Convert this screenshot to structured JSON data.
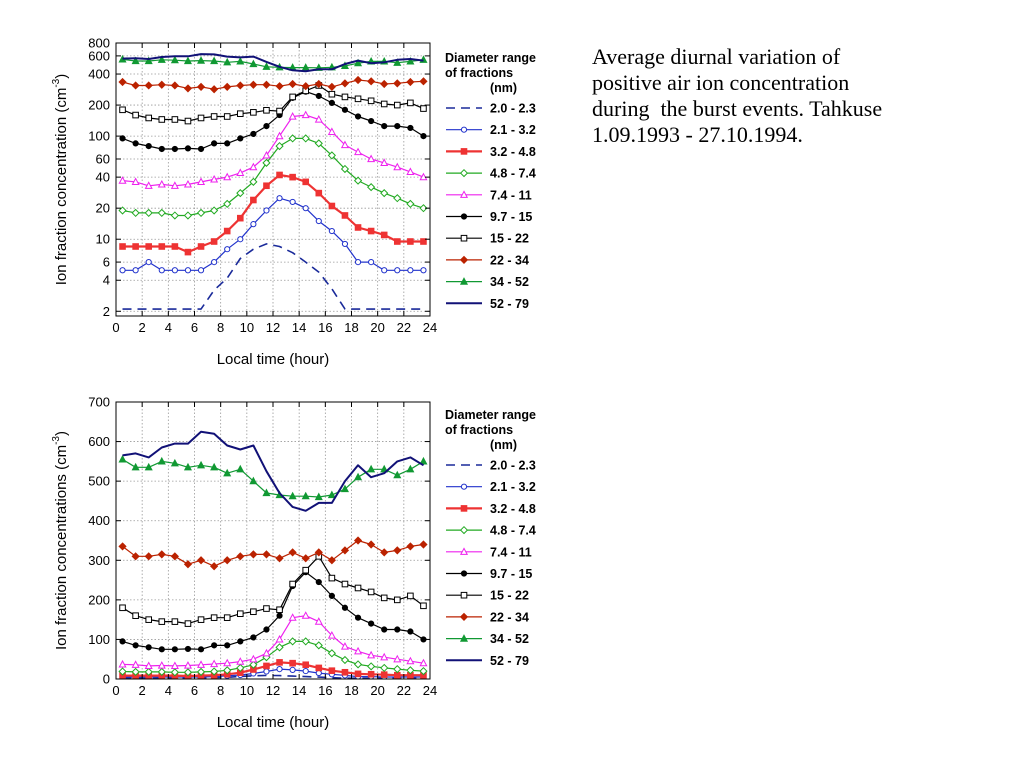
{
  "caption": {
    "lines": [
      "Average diurnal variation of",
      "positive air ion concentration",
      "during  the burst events. Tahkuse",
      "1.09.1993 - 27.10.1994."
    ]
  },
  "chart_data": [
    {
      "type": "line",
      "yscale": "log",
      "xlabel": "Local time  (hour)",
      "ylabel": "Ion fraction concentration  (cm",
      "ylabel_sup": "-3",
      "ylabel_close": ")",
      "xlim": [
        0,
        24
      ],
      "ylim": [
        1.8,
        800
      ],
      "xticks": [
        "0",
        "2",
        "4",
        "6",
        "8",
        "10",
        "12",
        "14",
        "16",
        "18",
        "20",
        "22",
        "24"
      ],
      "yticks": [
        {
          "v": 2,
          "label": "2"
        },
        {
          "v": 4,
          "label": "4"
        },
        {
          "v": 6,
          "label": "6"
        },
        {
          "v": 10,
          "label": "10"
        },
        {
          "v": 20,
          "label": "20"
        },
        {
          "v": 40,
          "label": "40"
        },
        {
          "v": 60,
          "label": "60"
        },
        {
          "v": 100,
          "label": "100"
        },
        {
          "v": 200,
          "label": "200"
        },
        {
          "v": 400,
          "label": "400"
        },
        {
          "v": 600,
          "label": "600"
        },
        {
          "v": 800,
          "label": "800"
        }
      ],
      "grid": true,
      "legend_title": [
        "Diameter range",
        "of fractions",
        "(nm)"
      ],
      "legend_position": "right",
      "series": [
        {
          "name": "2.0 - 2.3",
          "color": "#1a2a9a",
          "dash": true,
          "marker": "none",
          "width": 1.6,
          "x": [
            0.5,
            1.5,
            2.5,
            3.5,
            4.5,
            5.5,
            6.5,
            7.5,
            8.5,
            9.5,
            10.5,
            11.5,
            12.5,
            13.5,
            14.5,
            15.5,
            16.5,
            17.5,
            18.5,
            19.5,
            20.5,
            21.5,
            22.5,
            23.5
          ],
          "y": [
            2.1,
            2.1,
            2.1,
            2.1,
            2.1,
            2.1,
            2.1,
            3.2,
            4.2,
            6.5,
            8,
            9,
            8.5,
            7.4,
            6,
            4.8,
            3.3,
            2.1,
            2.1,
            2.1,
            2.1,
            2.1,
            2.1,
            2.1
          ]
        },
        {
          "name": "2.1 - 3.2",
          "color": "#2233cc",
          "dash": false,
          "marker": "circle-open",
          "width": 1.2,
          "x": [
            0.5,
            1.5,
            2.5,
            3.5,
            4.5,
            5.5,
            6.5,
            7.5,
            8.5,
            9.5,
            10.5,
            11.5,
            12.5,
            13.5,
            14.5,
            15.5,
            16.5,
            17.5,
            18.5,
            19.5,
            20.5,
            21.5,
            22.5,
            23.5
          ],
          "y": [
            5,
            5,
            6,
            5,
            5,
            5,
            5,
            6,
            8,
            10,
            14,
            19,
            25,
            23,
            20,
            15,
            12,
            9,
            6,
            6,
            5,
            5,
            5,
            5
          ]
        },
        {
          "name": "3.2 - 4.8",
          "color": "#ee3333",
          "dash": false,
          "marker": "square-filled",
          "width": 2.2,
          "x": [
            0.5,
            1.5,
            2.5,
            3.5,
            4.5,
            5.5,
            6.5,
            7.5,
            8.5,
            9.5,
            10.5,
            11.5,
            12.5,
            13.5,
            14.5,
            15.5,
            16.5,
            17.5,
            18.5,
            19.5,
            20.5,
            21.5,
            22.5,
            23.5
          ],
          "y": [
            8.5,
            8.5,
            8.5,
            8.5,
            8.5,
            7.5,
            8.5,
            9.5,
            12,
            16,
            24,
            33,
            42,
            40,
            36,
            28,
            21,
            17,
            13,
            12,
            11,
            9.5,
            9.5,
            9.5
          ]
        },
        {
          "name": "4.8 - 7.4",
          "color": "#22aa22",
          "dash": false,
          "marker": "diamond-open",
          "width": 1.2,
          "x": [
            0.5,
            1.5,
            2.5,
            3.5,
            4.5,
            5.5,
            6.5,
            7.5,
            8.5,
            9.5,
            10.5,
            11.5,
            12.5,
            13.5,
            14.5,
            15.5,
            16.5,
            17.5,
            18.5,
            19.5,
            20.5,
            21.5,
            22.5,
            23.5
          ],
          "y": [
            19,
            18,
            18,
            18,
            17,
            17,
            18,
            19,
            22,
            28,
            36,
            55,
            80,
            95,
            95,
            85,
            65,
            48,
            37,
            32,
            28,
            25,
            22,
            20
          ]
        },
        {
          "name": "7.4 - 11",
          "color": "#ee22ee",
          "dash": false,
          "marker": "triangle-open",
          "width": 1.2,
          "x": [
            0.5,
            1.5,
            2.5,
            3.5,
            4.5,
            5.5,
            6.5,
            7.5,
            8.5,
            9.5,
            10.5,
            11.5,
            12.5,
            13.5,
            14.5,
            15.5,
            16.5,
            17.5,
            18.5,
            19.5,
            20.5,
            21.5,
            22.5,
            23.5
          ],
          "y": [
            37,
            36,
            33,
            34,
            33,
            34,
            36,
            38,
            40,
            44,
            50,
            65,
            100,
            155,
            160,
            145,
            110,
            82,
            70,
            60,
            55,
            50,
            45,
            40
          ]
        },
        {
          "name": "9.7 - 15",
          "color": "#000000",
          "dash": false,
          "marker": "circle-filled",
          "width": 1.2,
          "x": [
            0.5,
            1.5,
            2.5,
            3.5,
            4.5,
            5.5,
            6.5,
            7.5,
            8.5,
            9.5,
            10.5,
            11.5,
            12.5,
            13.5,
            14.5,
            15.5,
            16.5,
            17.5,
            18.5,
            19.5,
            20.5,
            21.5,
            22.5,
            23.5
          ],
          "y": [
            95,
            85,
            80,
            75,
            75,
            76,
            75,
            85,
            85,
            95,
            105,
            125,
            160,
            235,
            270,
            245,
            210,
            180,
            155,
            140,
            125,
            125,
            120,
            100
          ]
        },
        {
          "name": "15 - 22",
          "color": "#000000",
          "dash": false,
          "marker": "square-open",
          "width": 1.2,
          "x": [
            0.5,
            1.5,
            2.5,
            3.5,
            4.5,
            5.5,
            6.5,
            7.5,
            8.5,
            9.5,
            10.5,
            11.5,
            12.5,
            13.5,
            14.5,
            15.5,
            16.5,
            17.5,
            18.5,
            19.5,
            20.5,
            21.5,
            22.5,
            23.5
          ],
          "y": [
            180,
            160,
            150,
            145,
            145,
            140,
            150,
            155,
            155,
            165,
            170,
            178,
            175,
            240,
            275,
            310,
            255,
            240,
            230,
            220,
            205,
            200,
            210,
            185
          ]
        },
        {
          "name": "22 - 34",
          "color": "#bb2200",
          "dash": false,
          "marker": "diamond-filled",
          "width": 1.2,
          "x": [
            0.5,
            1.5,
            2.5,
            3.5,
            4.5,
            5.5,
            6.5,
            7.5,
            8.5,
            9.5,
            10.5,
            11.5,
            12.5,
            13.5,
            14.5,
            15.5,
            16.5,
            17.5,
            18.5,
            19.5,
            20.5,
            21.5,
            22.5,
            23.5
          ],
          "y": [
            335,
            310,
            310,
            315,
            310,
            290,
            300,
            285,
            300,
            310,
            315,
            315,
            305,
            320,
            305,
            320,
            300,
            325,
            350,
            340,
            320,
            325,
            335,
            340
          ]
        },
        {
          "name": "34 - 52",
          "color": "#119933",
          "dash": false,
          "marker": "triangle-filled",
          "width": 1.2,
          "x": [
            0.5,
            1.5,
            2.5,
            3.5,
            4.5,
            5.5,
            6.5,
            7.5,
            8.5,
            9.5,
            10.5,
            11.5,
            12.5,
            13.5,
            14.5,
            15.5,
            16.5,
            17.5,
            18.5,
            19.5,
            20.5,
            21.5,
            22.5,
            23.5
          ],
          "y": [
            555,
            535,
            535,
            550,
            545,
            535,
            540,
            535,
            520,
            530,
            500,
            470,
            465,
            462,
            462,
            460,
            465,
            480,
            510,
            530,
            530,
            515,
            530,
            550
          ]
        },
        {
          "name": "52 - 79",
          "color": "#111177",
          "dash": false,
          "marker": "none",
          "width": 2,
          "x": [
            0.5,
            1.5,
            2.5,
            3.5,
            4.5,
            5.5,
            6.5,
            7.5,
            8.5,
            9.5,
            10.5,
            11.5,
            12.5,
            13.5,
            14.5,
            15.5,
            16.5,
            17.5,
            18.5,
            19.5,
            20.5,
            21.5,
            22.5,
            23.5
          ],
          "y": [
            565,
            570,
            560,
            585,
            595,
            595,
            625,
            620,
            590,
            580,
            590,
            525,
            470,
            435,
            425,
            445,
            445,
            500,
            540,
            510,
            520,
            550,
            560,
            540
          ]
        }
      ]
    },
    {
      "type": "line",
      "yscale": "linear",
      "xlabel": "Local time  (hour)",
      "ylabel": "Ion fraction concentrations  (cm",
      "ylabel_sup": "-3",
      "ylabel_close": ")",
      "xlim": [
        0,
        24
      ],
      "ylim": [
        0,
        700
      ],
      "xticks": [
        "0",
        "2",
        "4",
        "6",
        "8",
        "10",
        "12",
        "14",
        "16",
        "18",
        "20",
        "22",
        "24"
      ],
      "yticks": [
        {
          "v": 0,
          "label": "0"
        },
        {
          "v": 100,
          "label": "100"
        },
        {
          "v": 200,
          "label": "200"
        },
        {
          "v": 300,
          "label": "300"
        },
        {
          "v": 400,
          "label": "400"
        },
        {
          "v": 500,
          "label": "500"
        },
        {
          "v": 600,
          "label": "600"
        },
        {
          "v": 700,
          "label": "700"
        }
      ],
      "grid": true,
      "legend_title": [
        "Diameter range",
        "of fractions",
        "(nm)"
      ],
      "legend_position": "right",
      "series": "same-as-panel-1"
    }
  ]
}
